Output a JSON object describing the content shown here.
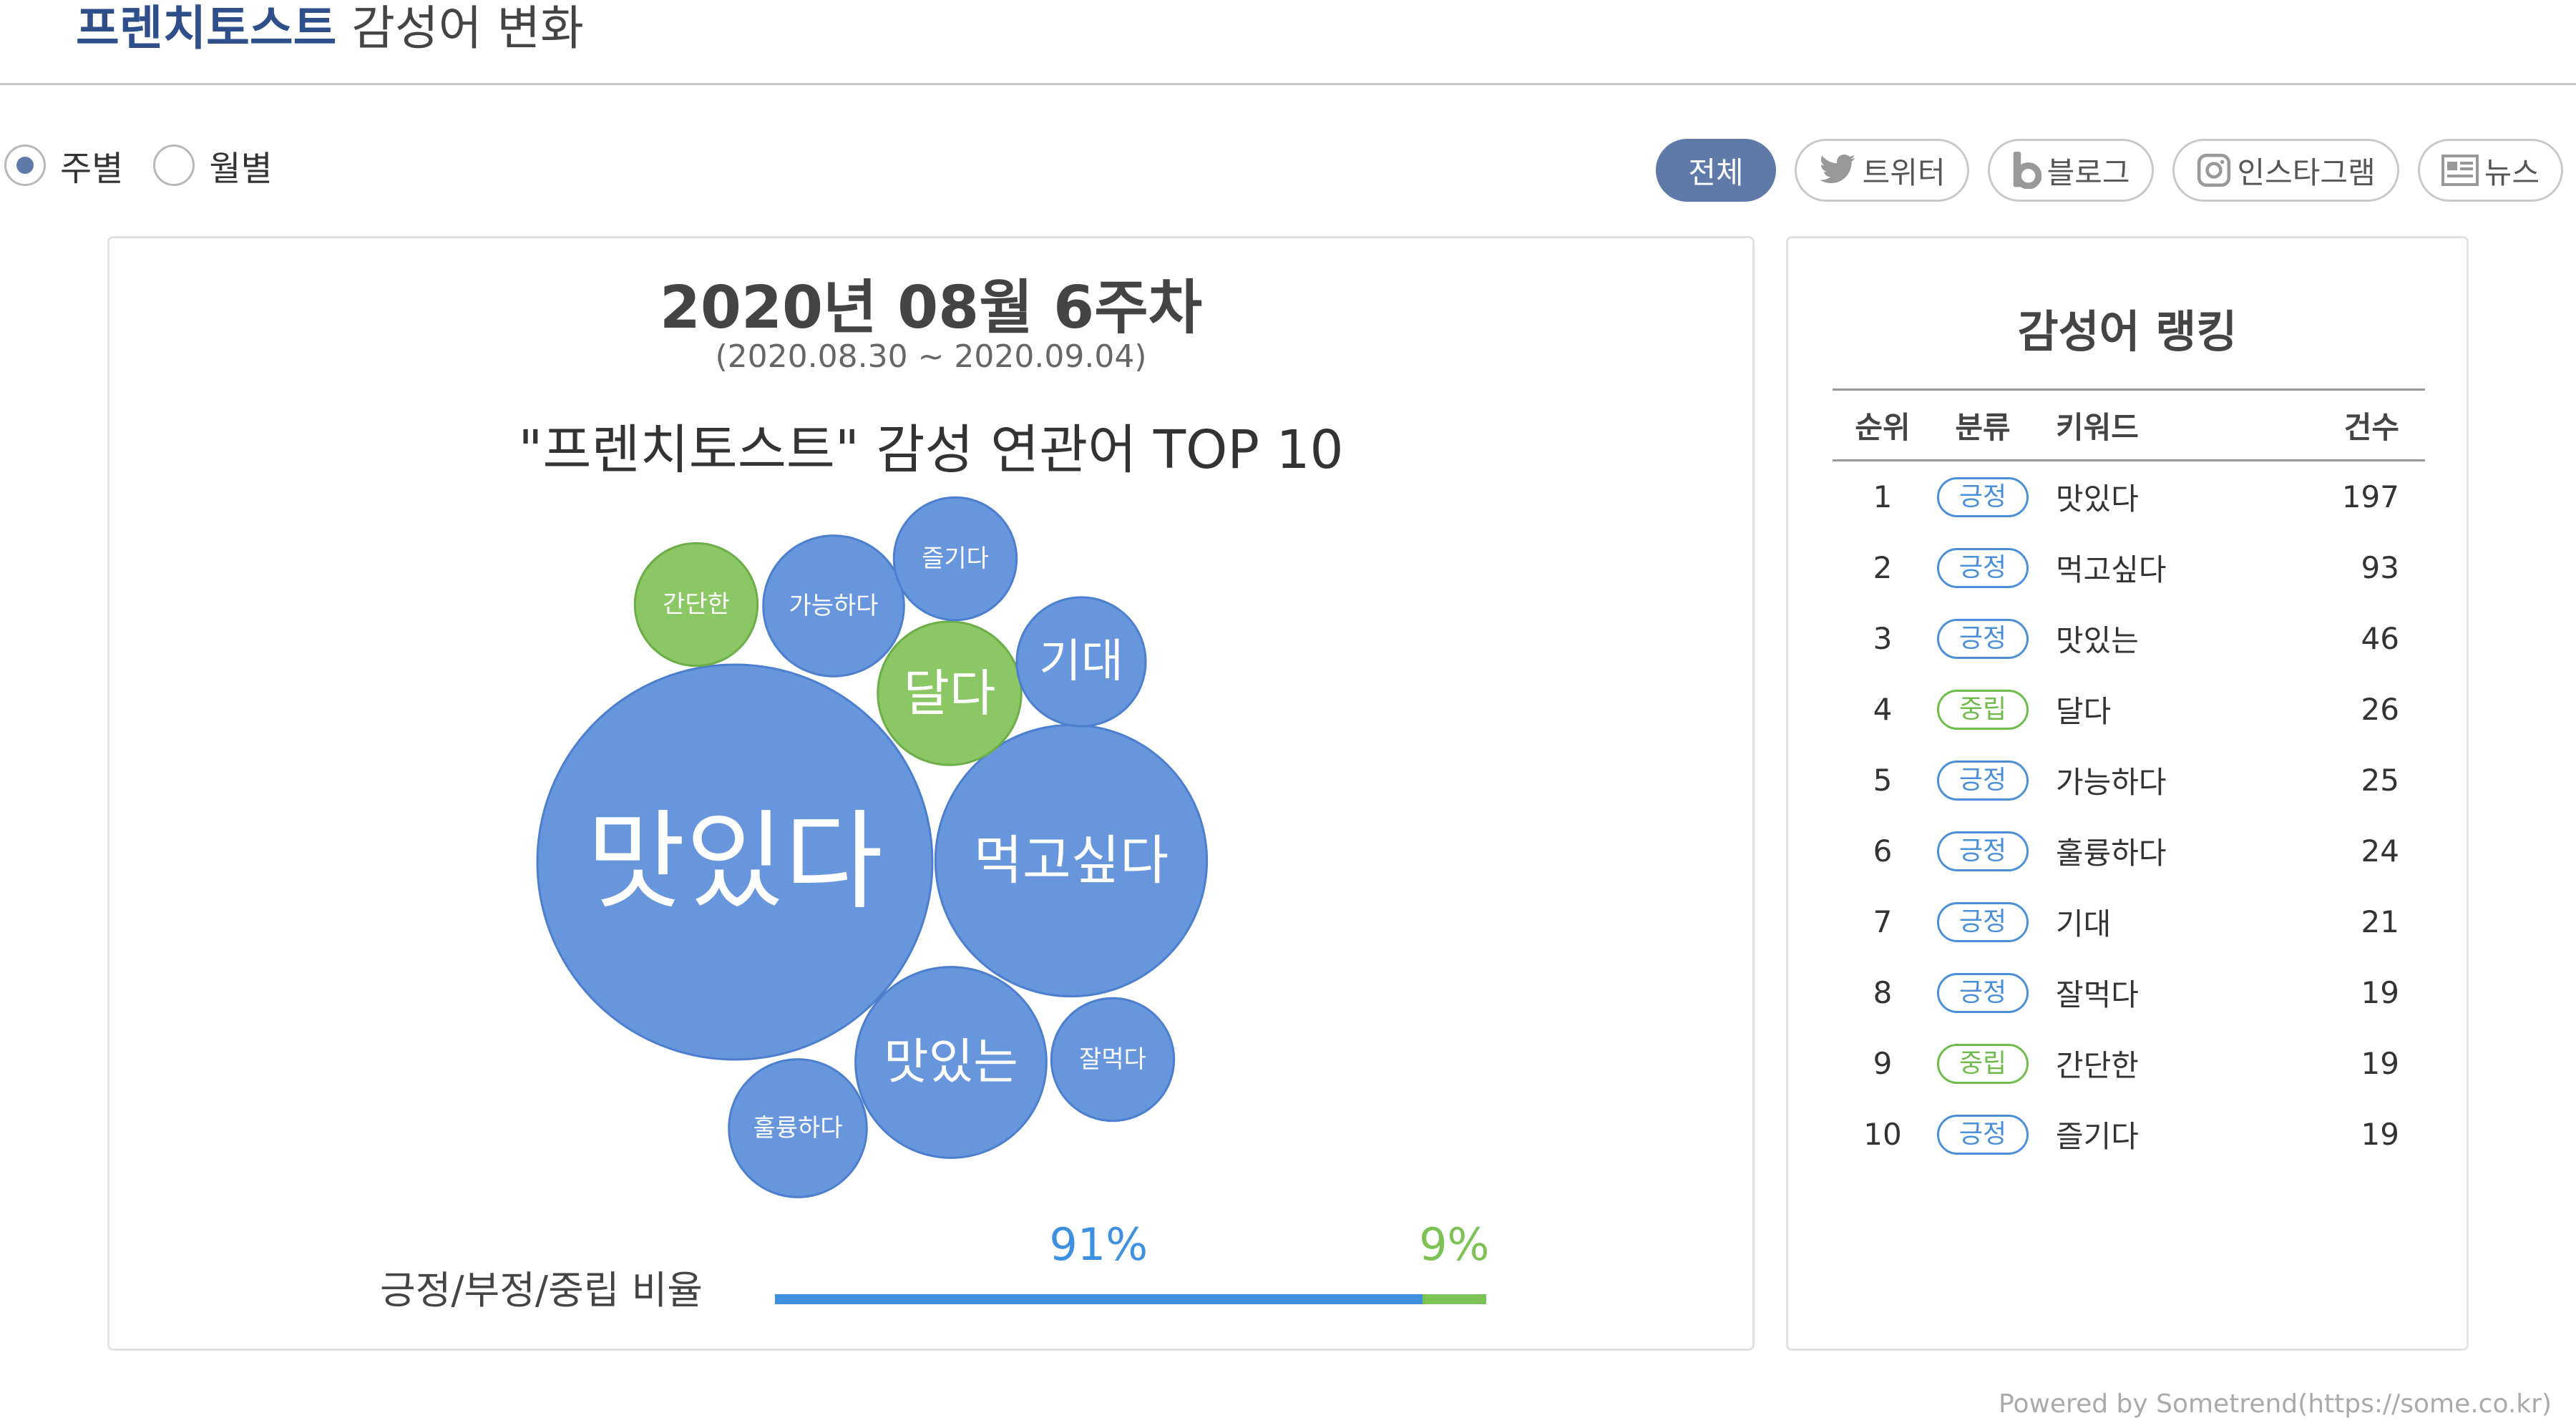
{
  "header": {
    "title_strong": "프렌치토스트",
    "title_rest": " 감성어 변화"
  },
  "period_toggle": [
    {
      "label": "주별",
      "checked": true
    },
    {
      "label": "월별",
      "checked": false
    }
  ],
  "channel_filters": [
    {
      "label": "전체",
      "active": true,
      "icon": ""
    },
    {
      "label": "트위터",
      "active": false,
      "icon": "twitter-icon"
    },
    {
      "label": "블로그",
      "active": false,
      "icon": "blog-icon"
    },
    {
      "label": "인스타그램",
      "active": false,
      "icon": "instagram-icon"
    },
    {
      "label": "뉴스",
      "active": false,
      "icon": "news-icon"
    }
  ],
  "main": {
    "week_title": "2020년 08월 6주차",
    "date_range": "(2020.08.30 ~ 2020.09.04)",
    "chart_title": "\"프렌치토스트\" 감성 연관어 TOP 10"
  },
  "chart_data": {
    "type": "bubble",
    "categories": [
      "맛있다",
      "먹고싶다",
      "맛있는",
      "달다",
      "가능하다",
      "훌륭하다",
      "기대",
      "잘먹다",
      "간단한",
      "즐기다"
    ],
    "values": [
      197,
      93,
      46,
      26,
      25,
      24,
      21,
      19,
      19,
      19
    ],
    "sentiment": [
      "긍정",
      "긍정",
      "긍정",
      "중립",
      "긍정",
      "긍정",
      "긍정",
      "긍정",
      "중립",
      "긍정"
    ],
    "colors": {
      "긍정": "#6896dc",
      "중립": "#8bc765"
    }
  },
  "ratio": {
    "label": "긍정/부정/중립 비율",
    "positive_label": "91%",
    "neutral_label": "9%",
    "positive": 0.91,
    "neutral": 0.09,
    "positive_color": "#3d8fe0",
    "neutral_color": "#7cc254"
  },
  "ranking": {
    "title": "감성어 랭킹",
    "headers": [
      "순위",
      "분류",
      "키워드",
      "건수"
    ],
    "rows": [
      {
        "rank": "1",
        "category": "긍정",
        "keyword": "맛있다",
        "count": "197"
      },
      {
        "rank": "2",
        "category": "긍정",
        "keyword": "먹고싶다",
        "count": "93"
      },
      {
        "rank": "3",
        "category": "긍정",
        "keyword": "맛있는",
        "count": "46"
      },
      {
        "rank": "4",
        "category": "중립",
        "keyword": "달다",
        "count": "26"
      },
      {
        "rank": "5",
        "category": "긍정",
        "keyword": "가능하다",
        "count": "25"
      },
      {
        "rank": "6",
        "category": "긍정",
        "keyword": "훌륭하다",
        "count": "24"
      },
      {
        "rank": "7",
        "category": "긍정",
        "keyword": "기대",
        "count": "21"
      },
      {
        "rank": "8",
        "category": "긍정",
        "keyword": "잘먹다",
        "count": "19"
      },
      {
        "rank": "9",
        "category": "중립",
        "keyword": "간단한",
        "count": "19"
      },
      {
        "rank": "10",
        "category": "긍정",
        "keyword": "즐기다",
        "count": "19"
      }
    ]
  },
  "footer": "Powered by Sometrend(https://some.co.kr)"
}
